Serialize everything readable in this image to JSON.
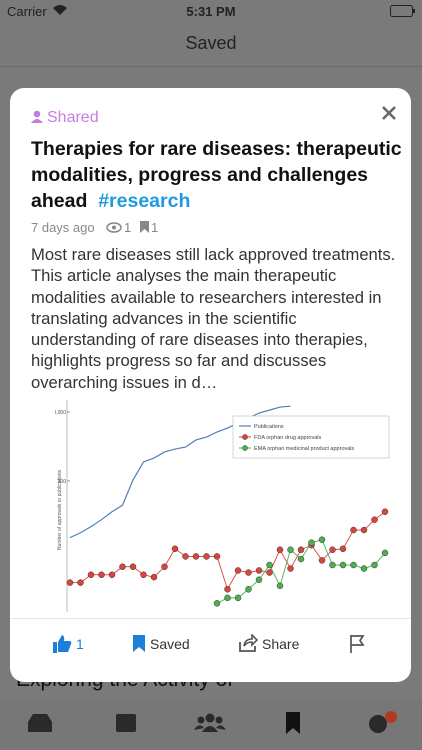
{
  "status_bar": {
    "carrier": "Carrier",
    "time": "5:31 PM"
  },
  "header": {
    "title": "Saved"
  },
  "background_item": {
    "title": "Exploring the Activity of"
  },
  "card": {
    "badge": "Shared",
    "title": "Therapies for rare diseases: therapeutic modalities, progress and challenges ahead",
    "tag": "#research",
    "age": "7 days ago",
    "views": 1,
    "saves": 1,
    "summary": "Most rare diseases still lack approved treatments. This article analyses the main therapeutic modalities available to researchers interested in translating advances in the scientific understanding of rare diseases into therapies, highlights progress so far and discusses overarching issues in d…",
    "actions": {
      "likes": 1,
      "saved": "Saved",
      "share": "Share"
    }
  },
  "figure": {
    "type": "line",
    "y_label": "Number of approvals or publications",
    "log_scale": true,
    "ylim": [
      4,
      3800
    ],
    "yticks": [
      {
        "value": 3000,
        "label": "3,000"
      },
      300
    ],
    "series": [
      {
        "name": "Publications",
        "color": "#4f7fb8",
        "values": [
          45,
          53,
          65,
          82,
          107,
          133,
          310,
          565,
          645,
          790,
          870,
          930,
          1180,
          1300,
          1540,
          1760,
          2080,
          2450,
          2900,
          3200,
          3550,
          3650,
          null,
          null,
          null,
          null,
          null,
          null,
          null,
          null,
          null
        ]
      },
      {
        "name": "FDA orphan drug approvals",
        "color": "#d9453a",
        "values": [
          10,
          10,
          13,
          13,
          13,
          17,
          17,
          13,
          12,
          17,
          31,
          24,
          24,
          24,
          24,
          8,
          15,
          14,
          15,
          14,
          30,
          16,
          30,
          35,
          21,
          30,
          31,
          58,
          58,
          82,
          107
        ]
      },
      {
        "name": "EMA orphan medicinal product approvals",
        "color": "#4cb050",
        "values": [
          null,
          null,
          null,
          null,
          null,
          null,
          null,
          null,
          null,
          null,
          null,
          null,
          null,
          null,
          5,
          6,
          6,
          8,
          11,
          18,
          9,
          30,
          22,
          38,
          42,
          18,
          18,
          18,
          16,
          18,
          27
        ]
      }
    ]
  }
}
